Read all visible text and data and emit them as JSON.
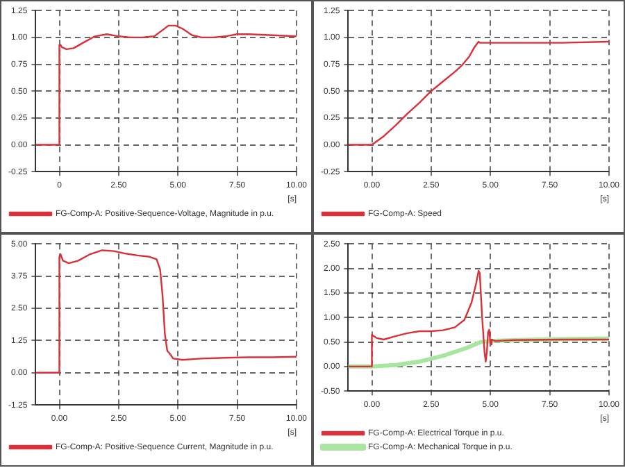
{
  "chart_data": [
    {
      "type": "line",
      "xlabel": "[s]",
      "xlim": [
        -1,
        10
      ],
      "xticks": [
        0,
        {
          "value": 2.5,
          "label": "2.50"
        },
        {
          "value": 5,
          "label": "5.00"
        },
        {
          "value": 7.5,
          "label": "7.50"
        },
        {
          "value": 10,
          "label": "10.00"
        }
      ],
      "ylim": [
        -0.25,
        1.25
      ],
      "yticks": [
        {
          "value": -0.25,
          "label": "-0.25"
        },
        {
          "value": 0,
          "label": "0.00"
        },
        {
          "value": 0.25,
          "label": "0.25"
        },
        {
          "value": 0.5,
          "label": "0.50"
        },
        {
          "value": 0.75,
          "label": "0.75"
        },
        {
          "value": 1,
          "label": "1.00"
        },
        {
          "value": 1.25,
          "label": "1.25"
        }
      ],
      "grid": true,
      "line_style": "solid",
      "marker": "none",
      "legend": "bottom",
      "series": [
        {
          "name": "FG-Comp-A: Positive-Sequence-Voltage, Magnitude in p.u.",
          "color": "#d9303a",
          "x": [
            -1,
            -0.01,
            0,
            0.05,
            0.1,
            0.3,
            0.6,
            1,
            1.5,
            2,
            2.5,
            3,
            3.5,
            4,
            4.3,
            4.6,
            4.9,
            5.2,
            5.6,
            6,
            6.5,
            7,
            7.5,
            8,
            9,
            10
          ],
          "values": [
            0,
            0,
            0.93,
            0.93,
            0.91,
            0.89,
            0.9,
            0.95,
            1.01,
            1.03,
            1.01,
            1,
            1,
            1.01,
            1.06,
            1.11,
            1.11,
            1.08,
            1.02,
            1,
            1,
            1.01,
            1.03,
            1.03,
            1.02,
            1.01
          ]
        }
      ]
    },
    {
      "type": "line",
      "xlabel": "[s]",
      "xlim": [
        -1,
        10
      ],
      "xticks": [
        {
          "value": 0,
          "label": "0.00"
        },
        {
          "value": 2.5,
          "label": "2.50"
        },
        {
          "value": 5,
          "label": "5.00"
        },
        {
          "value": 7.5,
          "label": "7.50"
        },
        {
          "value": 10,
          "label": "10.00"
        }
      ],
      "ylim": [
        -0.25,
        1.25
      ],
      "yticks": [
        {
          "value": -0.25,
          "label": "-0.25"
        },
        {
          "value": 0,
          "label": "0.00"
        },
        {
          "value": 0.25,
          "label": "0.25"
        },
        {
          "value": 0.5,
          "label": "0.50"
        },
        {
          "value": 0.75,
          "label": "0.75"
        },
        {
          "value": 1,
          "label": "1.00"
        },
        {
          "value": 1.25,
          "label": "1.25"
        }
      ],
      "grid": true,
      "line_style": "solid",
      "marker": "none",
      "legend": "bottom",
      "series": [
        {
          "name": "FG-Comp-A: Speed",
          "color": "#d9303a",
          "x": [
            -1,
            0,
            0.5,
            1,
            1.5,
            2,
            2.5,
            3,
            3.5,
            3.8,
            4.1,
            4.3,
            4.5,
            4.55,
            6,
            8,
            10
          ],
          "values": [
            0,
            0,
            0.08,
            0.18,
            0.29,
            0.39,
            0.5,
            0.59,
            0.68,
            0.74,
            0.82,
            0.9,
            0.96,
            0.95,
            0.95,
            0.95,
            0.96
          ]
        }
      ]
    },
    {
      "type": "line",
      "xlabel": "[s]",
      "xlim": [
        -1,
        10
      ],
      "xticks": [
        {
          "value": 0,
          "label": "0.00"
        },
        {
          "value": 2.5,
          "label": "2.50"
        },
        {
          "value": 5,
          "label": "5.00"
        },
        {
          "value": 7.5,
          "label": "7.50"
        },
        {
          "value": 10,
          "label": "10.00"
        }
      ],
      "ylim": [
        -1.25,
        5
      ],
      "yticks": [
        {
          "value": -1.25,
          "label": "-1.25"
        },
        {
          "value": 0,
          "label": "0.00"
        },
        {
          "value": 1.25,
          "label": "1.25"
        },
        {
          "value": 2.5,
          "label": "2.50"
        },
        {
          "value": 3.75,
          "label": "3.75"
        },
        {
          "value": 5,
          "label": "5.00"
        }
      ],
      "grid": true,
      "line_style": "solid",
      "marker": "none",
      "legend": "bottom",
      "series": [
        {
          "name": "FG-Comp-A: Positive-Sequence Current, Magnitude in p.u.",
          "color": "#d9303a",
          "x": [
            -1,
            -0.01,
            0,
            0.05,
            0.15,
            0.4,
            0.8,
            1.3,
            1.8,
            2.3,
            2.8,
            3.3,
            3.8,
            4.1,
            4.25,
            4.35,
            4.45,
            4.55,
            4.65,
            4.8,
            5.2,
            6,
            7,
            8,
            9,
            10
          ],
          "values": [
            0,
            0,
            4.5,
            4.6,
            4.35,
            4.25,
            4.35,
            4.6,
            4.75,
            4.72,
            4.62,
            4.55,
            4.5,
            4.4,
            4,
            3,
            1.5,
            0.85,
            0.75,
            0.55,
            0.5,
            0.55,
            0.58,
            0.6,
            0.6,
            0.62
          ]
        }
      ]
    },
    {
      "type": "line",
      "xlabel": "[s]",
      "xlim": [
        -1,
        10
      ],
      "xticks": [
        {
          "value": 0,
          "label": "0.00"
        },
        {
          "value": 2.5,
          "label": "2.50"
        },
        {
          "value": 5,
          "label": "5.00"
        },
        {
          "value": 7.5,
          "label": "7.50"
        },
        {
          "value": 10,
          "label": "10.00"
        }
      ],
      "ylim": [
        -0.5,
        2.5
      ],
      "yticks": [
        {
          "value": -0.5,
          "label": "-0.50"
        },
        {
          "value": 0,
          "label": "0.00"
        },
        {
          "value": 0.5,
          "label": "0.50"
        },
        {
          "value": 1,
          "label": "1.00"
        },
        {
          "value": 1.5,
          "label": "1.50"
        },
        {
          "value": 2,
          "label": "2.00"
        },
        {
          "value": 2.5,
          "label": "2.50"
        }
      ],
      "grid": true,
      "line_style": "solid",
      "marker": "none",
      "legend": "bottom",
      "series": [
        {
          "name": "FG-Comp-A: Electrical Torque in p.u.",
          "color": "#d9303a",
          "x": [
            -1,
            -0.01,
            0,
            0.05,
            0.2,
            0.5,
            1,
            1.5,
            2,
            2.5,
            3,
            3.5,
            3.9,
            4.2,
            4.4,
            4.5,
            4.55,
            4.65,
            4.75,
            4.8,
            4.85,
            4.9,
            4.95,
            5,
            5.05,
            5.2,
            6,
            8,
            10
          ],
          "values": [
            0,
            0,
            0.65,
            0.63,
            0.58,
            0.55,
            0.62,
            0.68,
            0.72,
            0.72,
            0.74,
            0.8,
            0.95,
            1.3,
            1.7,
            1.95,
            1.9,
            1,
            0.3,
            0.1,
            0.3,
            0.7,
            0.75,
            0.45,
            0.55,
            0.52,
            0.54,
            0.55,
            0.55
          ]
        },
        {
          "name": "FG-Comp-A: Mechanical Torque in p.u.",
          "color": "#a8e6a0",
          "x": [
            -1,
            0,
            1,
            2,
            3,
            4,
            4.6,
            5,
            7,
            10
          ],
          "values": [
            0,
            0,
            0.03,
            0.1,
            0.22,
            0.38,
            0.5,
            0.52,
            0.55,
            0.57
          ]
        }
      ]
    }
  ]
}
